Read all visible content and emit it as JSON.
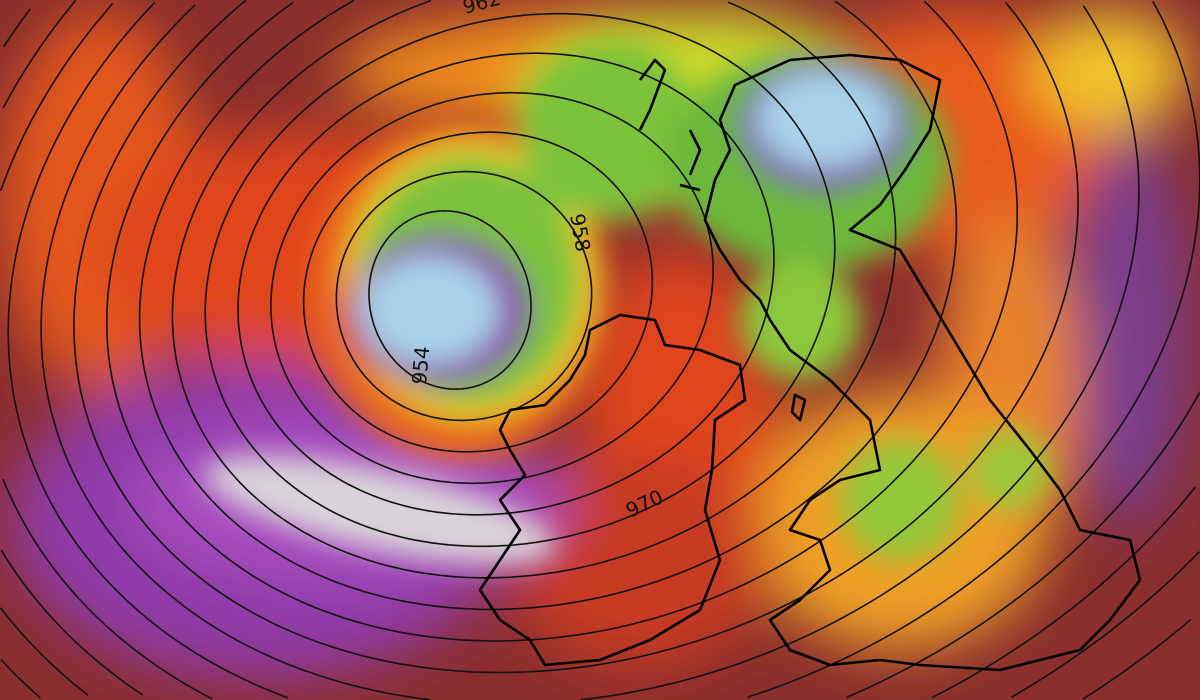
{
  "map": {
    "isobar_labels": [
      {
        "text": "962",
        "rotate": -15
      },
      {
        "text": "958",
        "rotate": 80
      },
      {
        "text": "954",
        "rotate": -85
      },
      {
        "text": "970",
        "rotate": -25
      }
    ],
    "colors": {
      "background": "#8a2e2e",
      "strong_wind_purple": "#9b3fb5",
      "extreme_white": "#d8d8d8",
      "calm_core_blue": "#a9d3ea",
      "green": "#7cc23a",
      "yellow": "#f2d52a",
      "orange": "#ef6a1a",
      "red": "#d6301c",
      "isobar": "#111111",
      "coastline": "#000000"
    }
  }
}
